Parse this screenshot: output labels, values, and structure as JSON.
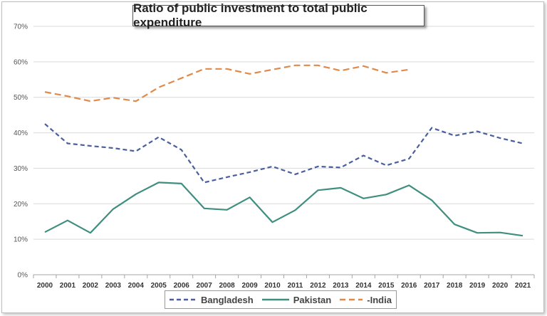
{
  "chart_data": {
    "type": "line",
    "title": "Ratio of public investment to total public expenditure",
    "x": [
      "2000",
      "2001",
      "2002",
      "2003",
      "2004",
      "2005",
      "2006",
      "2007",
      "2008",
      "2009",
      "2010",
      "2011",
      "2012",
      "2013",
      "2014",
      "2015",
      "2016",
      "2017",
      "2018",
      "2019",
      "2020",
      "2021"
    ],
    "ylim": [
      0,
      70
    ],
    "yticks": [
      "0%",
      "10%",
      "20%",
      "30%",
      "40%",
      "50%",
      "60%",
      "70%"
    ],
    "grid": true,
    "legend_position": "bottom",
    "series": [
      {
        "name": "Bangladesh",
        "color": "#4a5f9e",
        "dash": "dashed",
        "values": [
          42.5,
          37,
          36.3,
          35.7,
          34.8,
          38.8,
          35.2,
          26,
          27.5,
          28.9,
          30.5,
          28.3,
          30.5,
          30.2,
          33.6,
          30.8,
          32.7,
          41.4,
          39.2,
          40.4,
          38.5,
          37
        ]
      },
      {
        "name": "Pakistan",
        "color": "#3f8f7f",
        "dash": "solid",
        "values": [
          12,
          15.3,
          11.8,
          18.5,
          22.7,
          26,
          25.7,
          18.7,
          18.3,
          21.8,
          14.8,
          18.2,
          23.8,
          24.5,
          21.5,
          22.6,
          25.2,
          21,
          14.2,
          11.8,
          11.9,
          11
        ]
      },
      {
        "name": "-India",
        "color": "#e0894a",
        "dash": "dashed",
        "values": [
          51.5,
          50.3,
          48.9,
          49.9,
          48.9,
          52.8,
          55.4,
          58,
          58,
          56.6,
          57.8,
          59,
          59,
          57.5,
          58.8,
          56.9,
          57.8,
          null,
          null,
          null,
          null,
          null
        ]
      }
    ]
  }
}
